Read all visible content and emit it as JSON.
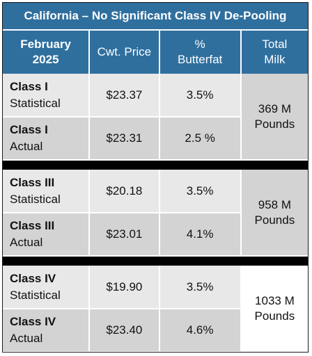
{
  "title": "California – No Significant Class IV De-Pooling",
  "headers": {
    "period_line1": "February",
    "period_line2": "2025",
    "price": "Cwt. Price",
    "butterfat_line1": "%",
    "butterfat_line2": "Butterfat",
    "total_line1": "Total",
    "total_line2": "Milk"
  },
  "groups": [
    {
      "rows": [
        {
          "class": "Class I",
          "type": "Statistical",
          "price": "$23.37",
          "butterfat": "3.5%"
        },
        {
          "class": "Class I",
          "type": "Actual",
          "price": "$23.31",
          "butterfat": "2.5 %"
        }
      ],
      "total_line1": "369 M",
      "total_line2": "Pounds"
    },
    {
      "rows": [
        {
          "class": "Class III",
          "type": "Statistical",
          "price": "$20.18",
          "butterfat": "3.5%"
        },
        {
          "class": "Class III",
          "type": "Actual",
          "price": "$23.01",
          "butterfat": "4.1%"
        }
      ],
      "total_line1": "958 M",
      "total_line2": "Pounds"
    },
    {
      "rows": [
        {
          "class": "Class IV",
          "type": "Statistical",
          "price": "$19.90",
          "butterfat": "3.5%"
        },
        {
          "class": "Class IV",
          "type": "Actual",
          "price": "$23.40",
          "butterfat": "4.6%"
        }
      ],
      "total_line1": "1033 M",
      "total_line2": "Pounds"
    }
  ]
}
